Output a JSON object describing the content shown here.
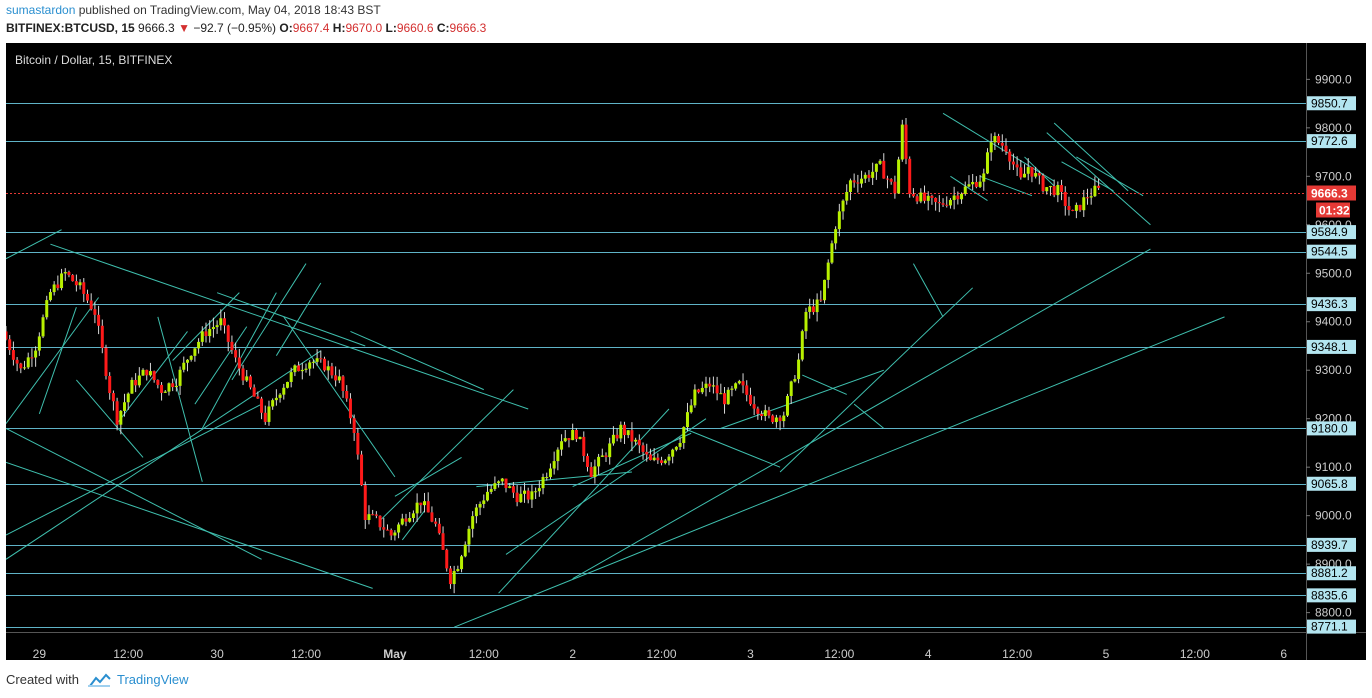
{
  "header": {
    "publisher": "sumastardon",
    "published_text": " published on TradingView.com, May 04, 2018 18:43 BST",
    "symbol": "BITFINEX:BTCUSD, 15",
    "last": "9666.3",
    "change": "−92.7 (−0.95%)",
    "o_label": "O:",
    "o_value": "9667.4",
    "h_label": "H:",
    "h_value": "9670.0",
    "l_label": "L:",
    "l_value": "9660.6",
    "c_label": "C:",
    "c_value": "9666.3"
  },
  "chart_data": {
    "type": "candlestick",
    "title": "Bitcoin / Dollar, 15, BITFINEX",
    "ylim": [
      8760,
      9975
    ],
    "y_ticks": [
      8800,
      8900,
      9000,
      9100,
      9200,
      9300,
      9400,
      9500,
      9600,
      9700,
      9800,
      9900
    ],
    "y_tick_labels": [
      "8800.0",
      "8900.0",
      "9000.0",
      "9100.0",
      "9200.0",
      "9300.0",
      "9400.0",
      "9500.0",
      "9600.0",
      "9700.0",
      "9800.0",
      "9900.0"
    ],
    "x_tick_labels": [
      "29",
      "12:00",
      "30",
      "12:00",
      "May",
      "12:00",
      "2",
      "12:00",
      "3",
      "12:00",
      "4",
      "12:00",
      "5",
      "12:00",
      "6"
    ],
    "x_tick_hours": [
      0,
      12,
      24,
      36,
      48,
      60,
      72,
      84,
      96,
      108,
      120,
      132,
      144,
      156,
      168
    ],
    "x_range_hours": [
      -4.5,
      171
    ],
    "horizontal_levels": [
      9850.7,
      9772.6,
      9584.9,
      9544.5,
      9436.3,
      9348.1,
      9180.0,
      9065.8,
      8939.7,
      8881.2,
      8835.6,
      8771.1
    ],
    "level_labels": [
      "9850.7",
      "9772.6",
      "9584.9",
      "9544.5",
      "9436.3",
      "9348.1",
      "9180.0",
      "9065.8",
      "8939.7",
      "8881.2",
      "8835.6",
      "8771.1"
    ],
    "current_price": 9666.3,
    "current_price_label": "9666.3",
    "countdown_label": "01:32",
    "trend_lines": [
      [
        [
          -4.5,
          9530
        ],
        [
          3,
          9590
        ]
      ],
      [
        [
          -4.5,
          9190
        ],
        [
          8,
          9450
        ]
      ],
      [
        [
          0,
          9210
        ],
        [
          5,
          9430
        ]
      ],
      [
        [
          1.5,
          9560
        ],
        [
          66,
          9220
        ]
      ],
      [
        [
          10.5,
          9190
        ],
        [
          20,
          9380
        ]
      ],
      [
        [
          5,
          9280
        ],
        [
          14,
          9120
        ]
      ],
      [
        [
          -4.5,
          9180
        ],
        [
          30,
          8910
        ]
      ],
      [
        [
          -4.5,
          9110
        ],
        [
          45,
          8850
        ]
      ],
      [
        [
          -4.5,
          8960
        ],
        [
          30,
          9230
        ]
      ],
      [
        [
          -4.5,
          8910
        ],
        [
          38,
          9340
        ]
      ],
      [
        [
          16,
          9410
        ],
        [
          22,
          9070
        ]
      ],
      [
        [
          18,
          9320
        ],
        [
          27,
          9460
        ]
      ],
      [
        [
          21,
          9230
        ],
        [
          28,
          9390
        ]
      ],
      [
        [
          22,
          9180
        ],
        [
          32,
          9460
        ]
      ],
      [
        [
          26,
          9280
        ],
        [
          36,
          9520
        ]
      ],
      [
        [
          32,
          9330
        ],
        [
          38,
          9480
        ]
      ],
      [
        [
          33,
          9410
        ],
        [
          48,
          9080
        ]
      ],
      [
        [
          42,
          9380
        ],
        [
          60,
          9260
        ]
      ],
      [
        [
          24,
          9460
        ],
        [
          44,
          9350
        ]
      ],
      [
        [
          46,
          8990
        ],
        [
          64,
          9260
        ]
      ],
      [
        [
          49,
          8950
        ],
        [
          52,
          9010
        ]
      ],
      [
        [
          48,
          9040
        ],
        [
          57,
          9120
        ]
      ],
      [
        [
          62,
          8840
        ],
        [
          85,
          9220
        ]
      ],
      [
        [
          63,
          8920
        ],
        [
          90,
          9200
        ]
      ],
      [
        [
          59,
          9060
        ],
        [
          80,
          9090
        ]
      ],
      [
        [
          72,
          9060
        ],
        [
          88,
          9170
        ]
      ],
      [
        [
          87,
          9180
        ],
        [
          100,
          9100
        ]
      ],
      [
        [
          92,
          9180
        ],
        [
          114,
          9300
        ]
      ],
      [
        [
          100,
          9090
        ],
        [
          126,
          9470
        ]
      ],
      [
        [
          72,
          8870
        ],
        [
          150,
          9550
        ]
      ],
      [
        [
          56,
          8770
        ],
        [
          160,
          9410
        ]
      ],
      [
        [
          103,
          9290
        ],
        [
          109,
          9250
        ]
      ],
      [
        [
          110,
          9230
        ],
        [
          114,
          9180
        ]
      ],
      [
        [
          118,
          9520
        ],
        [
          122,
          9410
        ]
      ],
      [
        [
          122,
          9830
        ],
        [
          137,
          9690
        ]
      ],
      [
        [
          127,
          9700
        ],
        [
          134,
          9660
        ]
      ],
      [
        [
          137,
          9810
        ],
        [
          147,
          9670
        ]
      ],
      [
        [
          136,
          9790
        ],
        [
          150,
          9600
        ]
      ],
      [
        [
          138,
          9730
        ],
        [
          145,
          9670
        ]
      ],
      [
        [
          140,
          9740
        ],
        [
          149,
          9660
        ]
      ],
      [
        [
          123,
          9700
        ],
        [
          128,
          9650
        ]
      ],
      [
        [
          133,
          9740
        ],
        [
          137,
          9680
        ]
      ]
    ]
  }
}
